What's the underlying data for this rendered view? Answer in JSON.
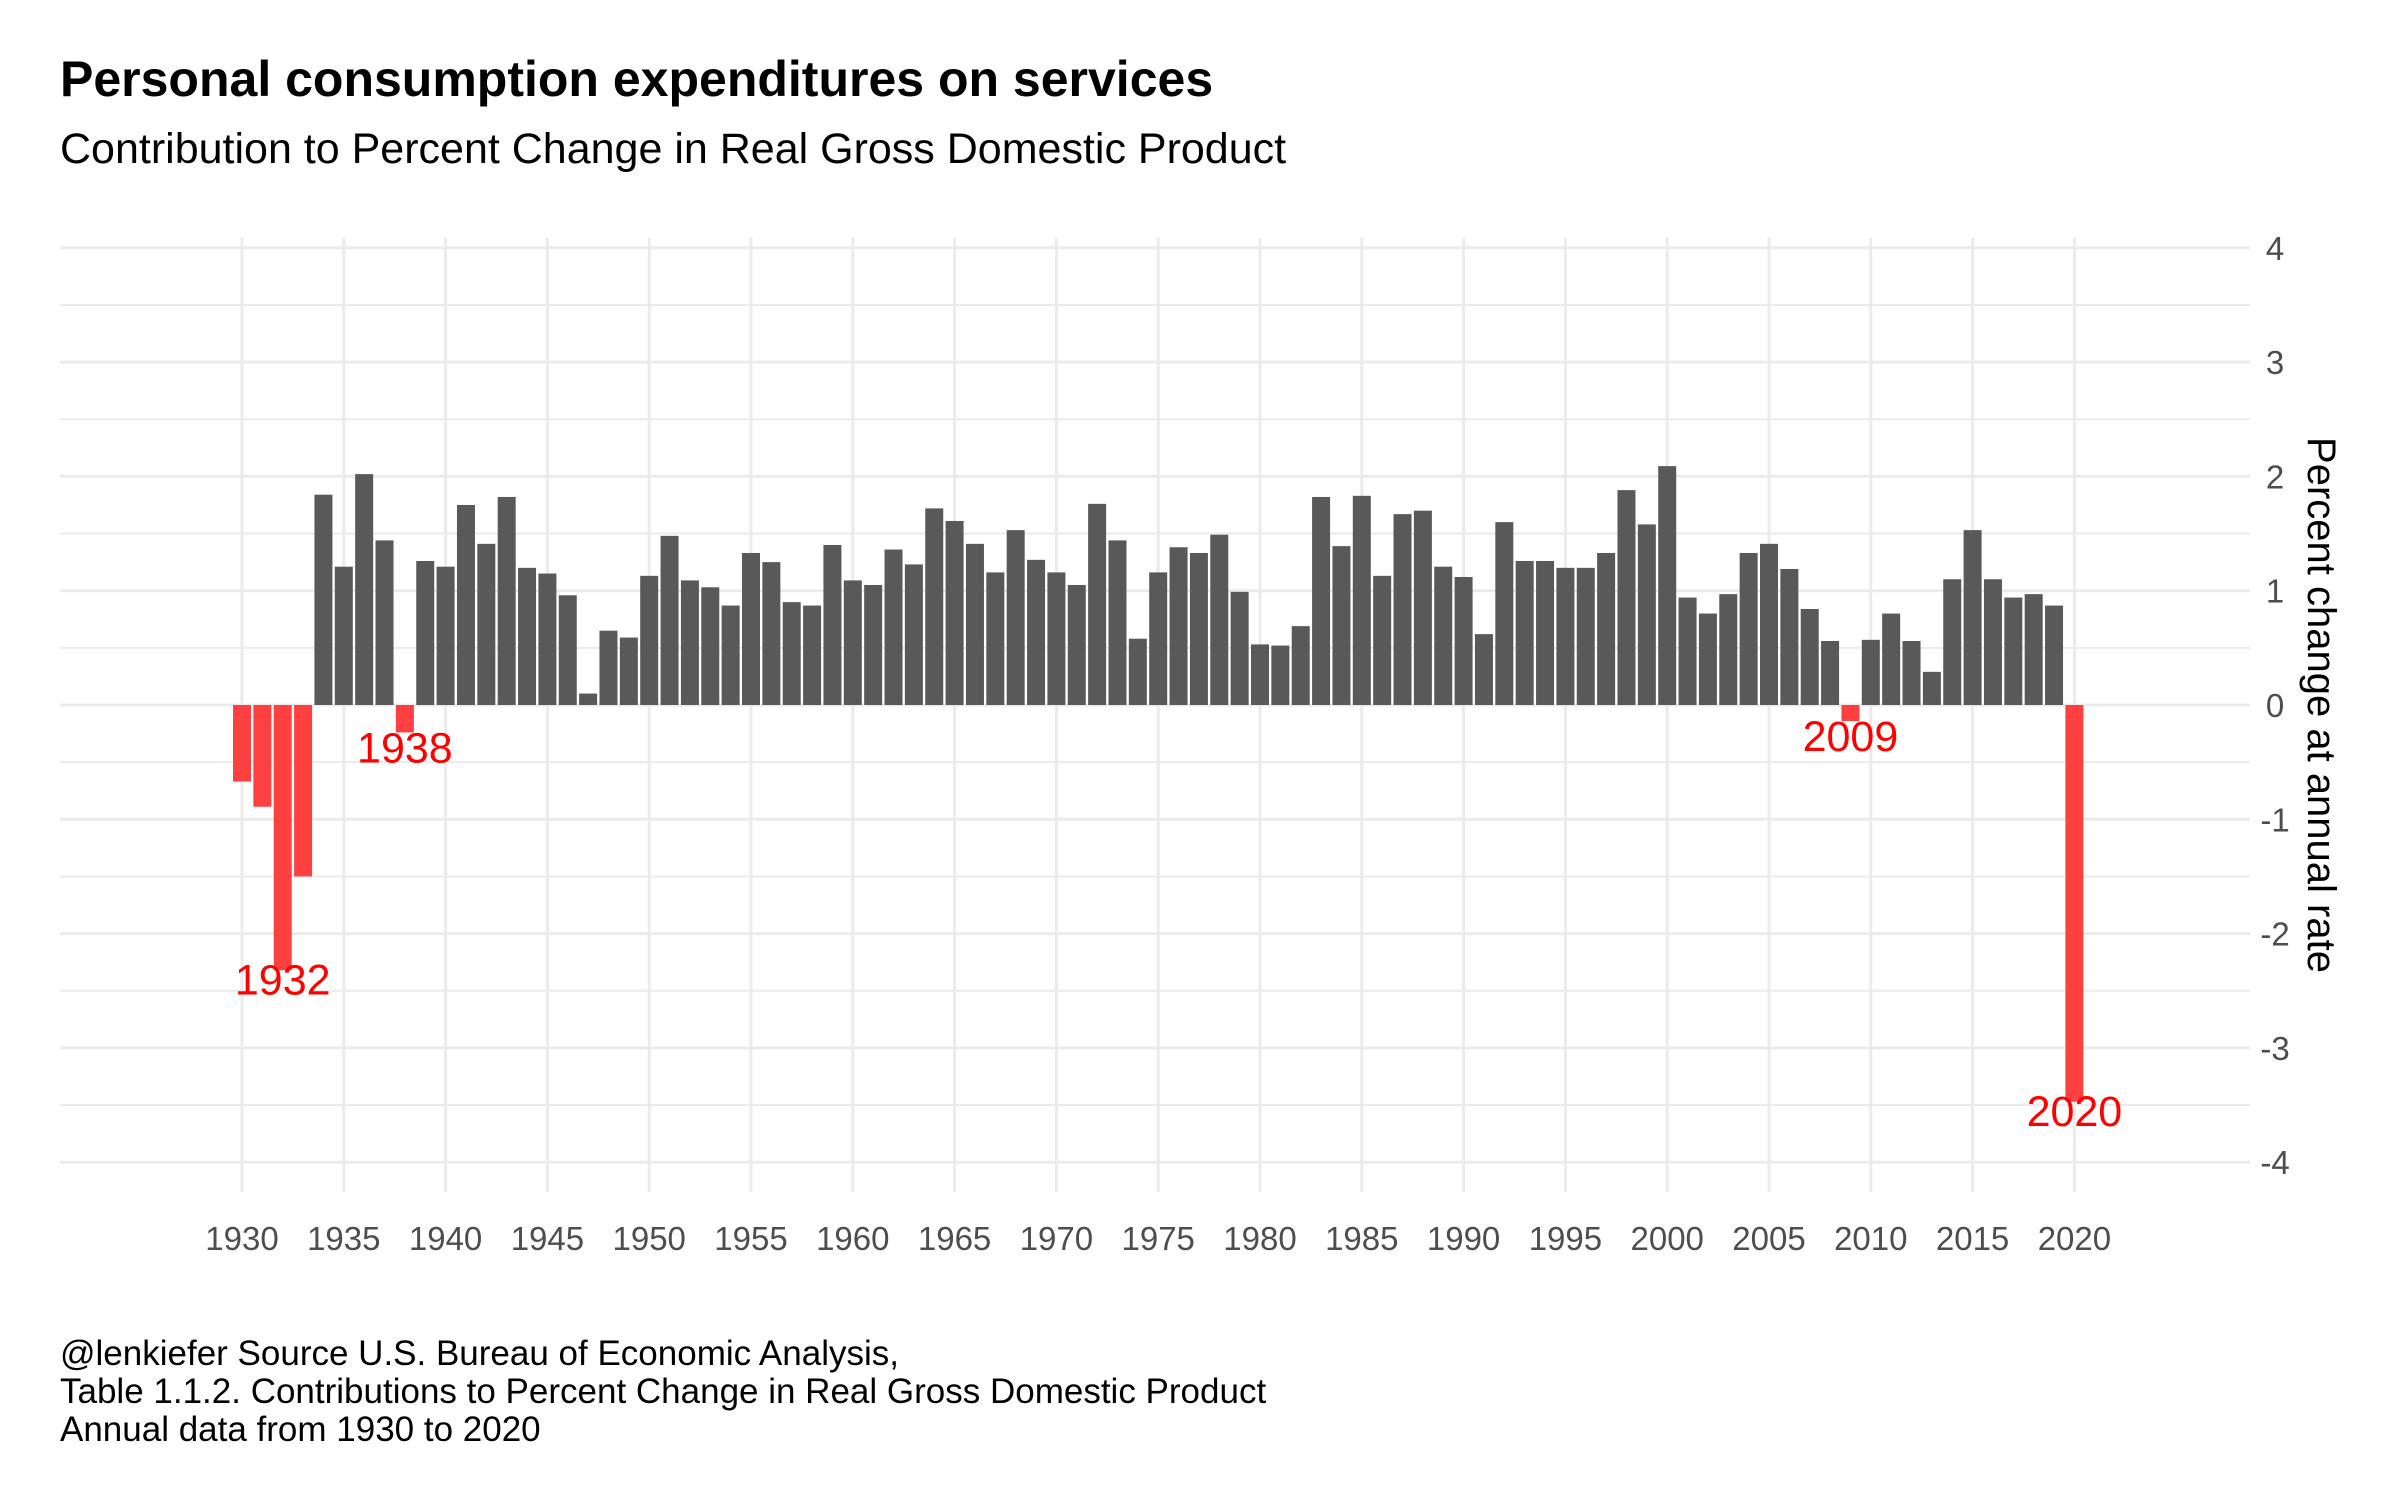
{
  "title": "Personal consumption expenditures on services",
  "subtitle": "Contribution to Percent Change in Real Gross Domestic Product",
  "caption": [
    "@lenkiefer Source U.S. Bureau of Economic Analysis,",
    "Table 1.1.2. Contributions to Percent Change in Real Gross Domestic Product",
    "Annual data from 1930 to 2020"
  ],
  "colors": {
    "positive": "#595959",
    "negative": "#ff4040",
    "annotation": "#ff0000",
    "grid": "#ebebeb"
  },
  "chart_data": {
    "type": "bar",
    "title": "Personal consumption expenditures on services",
    "subtitle": "Contribution to Percent Change in Real Gross Domestic Product",
    "xlabel": "",
    "ylabel": "Percent change at annual rate",
    "ylim": [
      -4,
      4
    ],
    "xlim": [
      1930,
      2020
    ],
    "grid": true,
    "y_axis_position": "right",
    "x_ticks": [
      "1930",
      "1935",
      "1940",
      "1945",
      "1950",
      "1955",
      "1960",
      "1965",
      "1970",
      "1975",
      "1980",
      "1985",
      "1990",
      "1995",
      "2000",
      "2005",
      "2010",
      "2015",
      "2020"
    ],
    "y_ticks": [
      "4",
      "3",
      "2",
      "1",
      "0",
      "-1",
      "-2",
      "-3",
      "-4"
    ],
    "x": [
      1930,
      1931,
      1932,
      1933,
      1934,
      1935,
      1936,
      1937,
      1938,
      1939,
      1940,
      1941,
      1942,
      1943,
      1944,
      1945,
      1946,
      1947,
      1948,
      1949,
      1950,
      1951,
      1952,
      1953,
      1954,
      1955,
      1956,
      1957,
      1958,
      1959,
      1960,
      1961,
      1962,
      1963,
      1964,
      1965,
      1966,
      1967,
      1968,
      1969,
      1970,
      1971,
      1972,
      1973,
      1974,
      1975,
      1976,
      1977,
      1978,
      1979,
      1980,
      1981,
      1982,
      1983,
      1984,
      1985,
      1986,
      1987,
      1988,
      1989,
      1990,
      1991,
      1992,
      1993,
      1994,
      1995,
      1996,
      1997,
      1998,
      1999,
      2000,
      2001,
      2002,
      2003,
      2004,
      2005,
      2006,
      2007,
      2008,
      2009,
      2010,
      2011,
      2012,
      2013,
      2014,
      2015,
      2016,
      2017,
      2018,
      2019,
      2020
    ],
    "values": [
      -0.67,
      -0.89,
      -2.32,
      -1.5,
      1.84,
      1.21,
      2.02,
      1.44,
      -0.24,
      1.26,
      1.21,
      1.75,
      1.41,
      1.82,
      1.2,
      1.15,
      0.96,
      0.1,
      0.65,
      0.59,
      1.13,
      1.48,
      1.09,
      1.03,
      0.87,
      1.33,
      1.25,
      0.9,
      0.87,
      1.4,
      1.09,
      1.05,
      1.36,
      1.23,
      1.72,
      1.61,
      1.41,
      1.16,
      1.53,
      1.27,
      1.16,
      1.05,
      1.76,
      1.44,
      0.58,
      1.16,
      1.38,
      1.33,
      1.49,
      0.99,
      0.53,
      0.52,
      0.69,
      1.82,
      1.39,
      1.83,
      1.13,
      1.67,
      1.7,
      1.21,
      1.12,
      0.62,
      1.6,
      1.26,
      1.26,
      1.2,
      1.2,
      1.33,
      1.88,
      1.58,
      2.09,
      0.94,
      0.8,
      0.97,
      1.33,
      1.41,
      1.19,
      0.84,
      0.56,
      -0.14,
      0.57,
      0.8,
      0.56,
      0.29,
      1.1,
      1.53,
      1.1,
      0.94,
      0.97,
      0.87,
      -3.47
    ],
    "annotations": [
      {
        "x": 1932,
        "label": "1932",
        "y": -2.4
      },
      {
        "x": 1938,
        "label": "1938",
        "y": -0.37
      },
      {
        "x": 2009,
        "label": "2009",
        "y": -0.27
      },
      {
        "x": 2020,
        "label": "2020",
        "y": -3.55
      }
    ]
  }
}
